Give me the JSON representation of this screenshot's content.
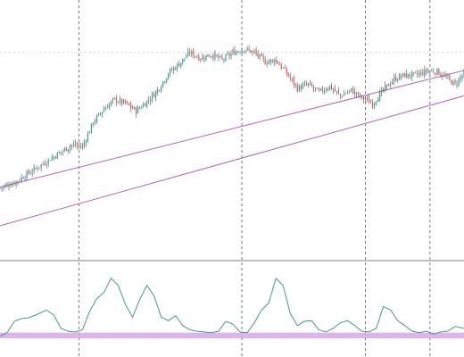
{
  "colors": {
    "background": "#ffffff",
    "bull": "#26a69a",
    "bear": "#ef5350",
    "wick": "#4a4a4a",
    "channel": "#b04cb8",
    "separator_lines": "#555555",
    "indicator_line": "#2f8f8a",
    "indicator_band": "#d8a8e6",
    "top_level_line": "#9fd6c9"
  },
  "chart_data": [
    {
      "type": "candlestick",
      "title": "",
      "xlabel": "",
      "ylabel": "",
      "x": {
        "type": "bar_index",
        "range": [
          0,
          259
        ]
      },
      "ylim": [
        0,
        100
      ],
      "grid": false,
      "legend": "none",
      "vertical_separators_at": [
        44,
        135,
        204,
        240
      ],
      "horizontal_level": 92,
      "channel_lines": [
        {
          "name": "",
          "from": {
            "x": 0,
            "y": 20.5
          },
          "to": {
            "x": 259,
            "y": 82.5
          }
        },
        {
          "name": "",
          "from": {
            "x": 0,
            "y": 0
          },
          "to": {
            "x": 259,
            "y": 69
          }
        }
      ],
      "close_path": {
        "x": [
          0,
          8,
          16,
          24,
          32,
          40,
          46,
          52,
          58,
          64,
          70,
          76,
          82,
          88,
          94,
          100,
          106,
          112,
          118,
          124,
          130,
          136,
          142,
          148,
          154,
          160,
          166,
          172,
          178,
          184,
          190,
          196,
          202,
          208,
          214,
          220,
          226,
          232,
          238,
          244,
          250,
          254,
          259
        ],
        "y": [
          20,
          23,
          28,
          33,
          38,
          43,
          42,
          55,
          62,
          67,
          65,
          61,
          66,
          72,
          81,
          86,
          92,
          89,
          91,
          88,
          92,
          94,
          92,
          87,
          88,
          81,
          73,
          75,
          71,
          74,
          69,
          72,
          68,
          65,
          72,
          78,
          80,
          80,
          82,
          82,
          78,
          75,
          81
        ]
      }
    },
    {
      "type": "line",
      "title": "",
      "xlabel": "",
      "ylabel": "",
      "x": {
        "type": "bar_index",
        "range": [
          0,
          259
        ]
      },
      "ylim": [
        0,
        100
      ],
      "band": [
        0,
        8
      ],
      "grid": false,
      "legend": "none",
      "series": [
        {
          "name": "",
          "x": [
            0,
            4,
            8,
            12,
            16,
            20,
            26,
            30,
            34,
            38,
            42,
            46,
            50,
            54,
            58,
            62,
            66,
            70,
            74,
            78,
            82,
            86,
            90,
            94,
            98,
            102,
            106,
            110,
            114,
            118,
            122,
            126,
            130,
            134,
            138,
            142,
            146,
            150,
            154,
            158,
            162,
            166,
            170,
            174,
            178,
            182,
            186,
            190,
            194,
            198,
            202,
            206,
            210,
            214,
            218,
            222,
            226,
            230,
            234,
            238,
            242,
            246,
            250,
            254,
            259
          ],
          "y": [
            3,
            8,
            24,
            28,
            29,
            33,
            40,
            33,
            14,
            10,
            9,
            12,
            38,
            56,
            65,
            85,
            75,
            48,
            30,
            55,
            75,
            60,
            30,
            25,
            32,
            18,
            12,
            10,
            9,
            8,
            10,
            24,
            20,
            9,
            8,
            22,
            40,
            50,
            85,
            75,
            35,
            18,
            24,
            25,
            12,
            9,
            14,
            22,
            25,
            18,
            10,
            9,
            14,
            45,
            40,
            25,
            18,
            10,
            8,
            10,
            6,
            9,
            10,
            17,
            14
          ]
        }
      ]
    }
  ]
}
